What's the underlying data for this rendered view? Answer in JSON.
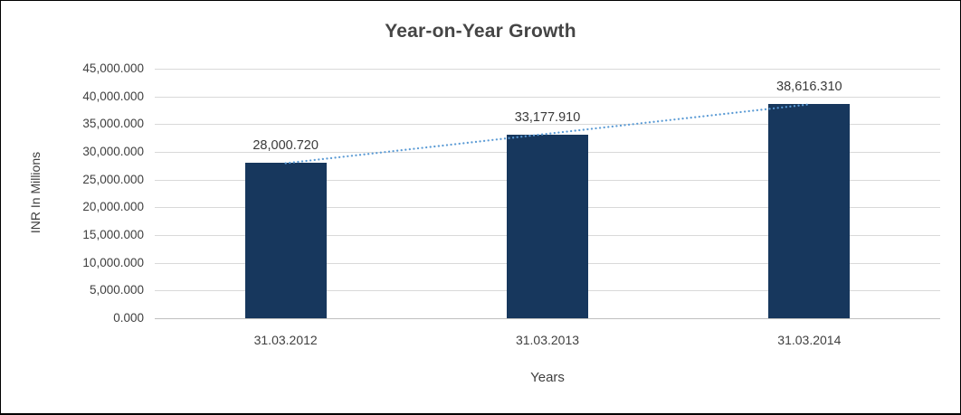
{
  "chart_data": {
    "type": "bar",
    "title": "Year-on-Year Growth",
    "xlabel": "Years",
    "ylabel": "INR In Millions",
    "categories": [
      "31.03.2012",
      "31.03.2013",
      "31.03.2014"
    ],
    "values": [
      28000.72,
      33177.91,
      38616.31
    ],
    "data_labels": [
      "28,000.720",
      "33,177.910",
      "38,616.310"
    ],
    "ylim": [
      0,
      45000
    ],
    "ytick_step": 5000,
    "ytick_labels": [
      "45,000.000",
      "40,000.000",
      "35,000.000",
      "30,000.000",
      "25,000.000",
      "20,000.000",
      "15,000.000",
      "10,000.000",
      "5,000.000",
      "0.000"
    ],
    "grid": true,
    "legend": false,
    "bar_color": "#17375D",
    "trendline": {
      "type": "linear",
      "style": "dotted",
      "color": "#5B9BD5"
    }
  }
}
